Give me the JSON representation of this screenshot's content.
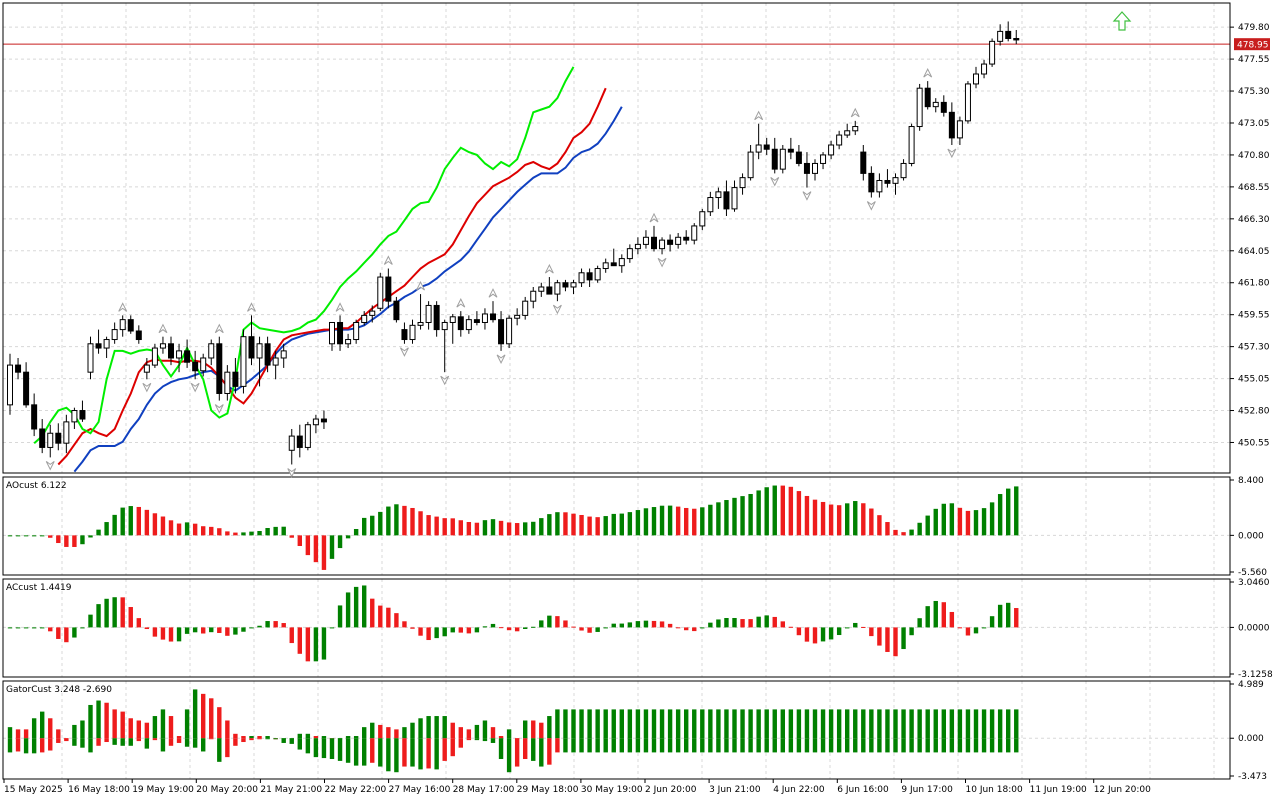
{
  "chart_data": {
    "type": "candlestick",
    "main": {
      "ylim": [
        448.4,
        481.5
      ],
      "ticks": [
        "479.80",
        "477.55",
        "475.30",
        "473.05",
        "470.80",
        "468.55",
        "466.30",
        "464.05",
        "461.80",
        "459.55",
        "457.30",
        "455.05",
        "452.80",
        "450.55"
      ],
      "current_price": "478.95",
      "price_line_value": 478.6,
      "alligator": {
        "lips_color": "#00ee00",
        "teeth_color": "#dd0000",
        "jaw_color": "#1040c0"
      }
    },
    "panels": [
      {
        "label": "AOcust 6.122",
        "ticks": [
          "8.400",
          "0.000",
          "-5.560"
        ],
        "ylim": [
          -5.56,
          8.4
        ],
        "up_color": "#008000",
        "down_color": "#ee1c1c"
      },
      {
        "label": "ACcust 1.4419",
        "ticks": [
          "3.0460",
          "0.0000",
          "-3.1258"
        ],
        "ylim": [
          -3.1258,
          3.046
        ],
        "up_color": "#008000",
        "down_color": "#ee1c1c"
      },
      {
        "label": "GatorCust 3.248 -2.690",
        "ticks": [
          "4.989",
          "0.000",
          "-3.473"
        ],
        "ylim": [
          -3.473,
          4.989
        ],
        "up_color": "#008000",
        "down_color": "#ee1c1c"
      }
    ],
    "x_labels": [
      "15 May 2025",
      "16 May 18:00",
      "19 May 19:00",
      "20 May 20:00",
      "21 May 21:00",
      "22 May 22:00",
      "27 May 16:00",
      "28 May 17:00",
      "29 May 18:00",
      "30 May 19:00",
      "2 Jun 20:00",
      "3 Jun 21:00",
      "4 Jun 22:00",
      "6 Jun 16:00",
      "9 Jun 17:00",
      "10 Jun 18:00",
      "11 Jun 19:00",
      "12 Jun 20:00"
    ],
    "candles": [
      [
        453.2,
        456.8,
        452.5,
        456.0
      ],
      [
        456.0,
        456.5,
        455.0,
        455.5
      ],
      [
        455.5,
        456.2,
        453.0,
        453.2
      ],
      [
        453.2,
        454.0,
        451.0,
        451.5
      ],
      [
        451.5,
        452.2,
        449.8,
        450.2
      ],
      [
        450.2,
        451.8,
        449.5,
        451.2
      ],
      [
        451.2,
        451.9,
        450.0,
        450.5
      ],
      [
        450.5,
        452.5,
        449.8,
        452.0
      ],
      [
        452.0,
        453.0,
        451.5,
        452.8
      ],
      [
        452.8,
        453.5,
        452.0,
        452.2
      ],
      [
        455.5,
        458.0,
        455.0,
        457.5
      ],
      [
        457.5,
        458.5,
        456.8,
        457.2
      ],
      [
        457.2,
        458.0,
        456.5,
        457.8
      ],
      [
        457.8,
        459.0,
        457.5,
        458.5
      ],
      [
        458.5,
        459.5,
        458.0,
        459.2
      ],
      [
        459.2,
        459.5,
        458.2,
        458.4
      ],
      [
        458.4,
        458.8,
        457.5,
        457.8
      ],
      [
        455.5,
        456.5,
        455.0,
        456.0
      ],
      [
        456.0,
        457.5,
        455.8,
        457.2
      ],
      [
        457.2,
        458.0,
        456.8,
        457.5
      ],
      [
        457.5,
        458.0,
        456.0,
        456.5
      ],
      [
        456.5,
        457.5,
        455.5,
        457.0
      ],
      [
        457.0,
        457.8,
        455.8,
        456.2
      ],
      [
        456.2,
        457.0,
        455.0,
        455.6
      ],
      [
        455.6,
        456.8,
        455.2,
        456.5
      ],
      [
        456.5,
        457.8,
        456.0,
        457.5
      ],
      [
        457.5,
        458.0,
        453.5,
        454.0
      ],
      [
        454.0,
        456.0,
        453.5,
        455.5
      ],
      [
        455.5,
        456.5,
        454.0,
        454.5
      ],
      [
        454.5,
        458.5,
        454.0,
        458.0
      ],
      [
        458.0,
        459.5,
        456.0,
        456.5
      ],
      [
        456.5,
        458.0,
        454.5,
        457.5
      ],
      [
        457.5,
        458.0,
        455.5,
        456.0
      ],
      [
        456.0,
        457.0,
        455.0,
        456.5
      ],
      [
        456.5,
        457.5,
        455.8,
        457.0
      ],
      [
        450.0,
        451.5,
        449.0,
        451.0
      ],
      [
        451.0,
        451.8,
        449.5,
        450.2
      ],
      [
        450.2,
        452.0,
        450.0,
        451.8
      ],
      [
        451.8,
        452.5,
        451.2,
        452.2
      ],
      [
        452.2,
        452.8,
        451.5,
        452.0
      ],
      [
        457.5,
        459.0,
        457.0,
        459.0
      ],
      [
        459.0,
        459.5,
        457.0,
        457.5
      ],
      [
        457.5,
        458.2,
        457.2,
        457.8
      ],
      [
        457.8,
        459.2,
        457.5,
        459.0
      ],
      [
        459.0,
        459.8,
        458.8,
        459.5
      ],
      [
        459.5,
        460.2,
        459.0,
        459.8
      ],
      [
        460.0,
        462.5,
        459.8,
        462.2
      ],
      [
        462.2,
        462.8,
        460.0,
        460.5
      ],
      [
        460.5,
        460.8,
        459.0,
        459.2
      ],
      [
        458.5,
        459.0,
        457.5,
        457.8
      ],
      [
        457.8,
        459.2,
        457.5,
        458.8
      ],
      [
        458.8,
        461.0,
        458.5,
        459.0
      ],
      [
        459.0,
        460.5,
        458.5,
        460.2
      ],
      [
        460.2,
        460.5,
        458.0,
        458.5
      ],
      [
        458.5,
        459.2,
        455.5,
        459.0
      ],
      [
        459.0,
        459.6,
        457.5,
        459.4
      ],
      [
        459.4,
        459.8,
        458.0,
        458.5
      ],
      [
        458.5,
        459.5,
        458.2,
        459.2
      ],
      [
        459.2,
        459.8,
        458.8,
        459.0
      ],
      [
        459.0,
        460.0,
        458.5,
        459.6
      ],
      [
        459.6,
        460.5,
        459.0,
        459.2
      ],
      [
        459.2,
        459.8,
        457.0,
        457.5
      ],
      [
        457.5,
        459.5,
        457.2,
        459.3
      ],
      [
        459.3,
        460.0,
        458.8,
        459.5
      ],
      [
        459.5,
        460.8,
        459.2,
        460.5
      ],
      [
        460.5,
        461.5,
        460.0,
        461.2
      ],
      [
        461.2,
        461.8,
        460.8,
        461.5
      ],
      [
        461.5,
        462.2,
        461.0,
        461.0
      ],
      [
        461.0,
        462.0,
        460.5,
        461.8
      ],
      [
        461.8,
        462.0,
        461.2,
        461.5
      ],
      [
        461.5,
        462.0,
        461.0,
        461.8
      ],
      [
        461.8,
        462.8,
        461.5,
        462.5
      ],
      [
        462.5,
        462.8,
        461.5,
        462.0
      ],
      [
        462.0,
        463.0,
        461.8,
        462.8
      ],
      [
        462.8,
        463.5,
        462.5,
        463.2
      ],
      [
        463.2,
        464.2,
        463.0,
        463.0
      ],
      [
        463.0,
        463.8,
        462.5,
        463.5
      ],
      [
        463.5,
        464.5,
        463.2,
        464.2
      ],
      [
        464.2,
        465.0,
        463.8,
        464.5
      ],
      [
        464.5,
        465.5,
        464.2,
        465.0
      ],
      [
        465.0,
        465.8,
        464.0,
        464.2
      ],
      [
        464.2,
        465.0,
        463.8,
        464.8
      ],
      [
        464.8,
        465.2,
        464.0,
        464.5
      ],
      [
        464.5,
        465.3,
        464.2,
        465.0
      ],
      [
        465.0,
        465.5,
        464.5,
        464.8
      ],
      [
        464.8,
        466.0,
        464.5,
        465.8
      ],
      [
        465.8,
        467.0,
        465.5,
        466.8
      ],
      [
        466.8,
        468.2,
        466.5,
        467.8
      ],
      [
        467.8,
        468.5,
        467.0,
        468.2
      ],
      [
        468.2,
        469.0,
        466.5,
        467.0
      ],
      [
        467.0,
        469.0,
        466.8,
        468.5
      ],
      [
        468.5,
        469.5,
        468.0,
        469.2
      ],
      [
        469.2,
        471.5,
        469.0,
        471.0
      ],
      [
        471.0,
        473.0,
        470.5,
        471.5
      ],
      [
        471.5,
        472.0,
        470.8,
        471.2
      ],
      [
        471.2,
        472.0,
        469.5,
        469.8
      ],
      [
        469.8,
        471.5,
        469.5,
        471.2
      ],
      [
        471.2,
        472.0,
        470.5,
        471.0
      ],
      [
        471.0,
        471.5,
        470.0,
        470.2
      ],
      [
        470.2,
        471.0,
        468.5,
        469.5
      ],
      [
        469.5,
        470.5,
        469.0,
        470.2
      ],
      [
        470.2,
        471.0,
        469.8,
        470.8
      ],
      [
        470.8,
        471.8,
        470.5,
        471.5
      ],
      [
        471.5,
        472.5,
        471.2,
        472.2
      ],
      [
        472.2,
        473.0,
        472.0,
        472.5
      ],
      [
        472.5,
        473.2,
        472.2,
        472.8
      ],
      [
        471.0,
        471.5,
        469.0,
        469.5
      ],
      [
        469.5,
        470.0,
        467.8,
        468.2
      ],
      [
        468.2,
        469.5,
        467.8,
        469.0
      ],
      [
        469.0,
        469.8,
        468.5,
        468.8
      ],
      [
        468.8,
        469.5,
        468.0,
        469.2
      ],
      [
        469.2,
        470.5,
        469.0,
        470.2
      ],
      [
        470.2,
        473.0,
        470.0,
        472.8
      ],
      [
        472.8,
        475.8,
        472.5,
        475.5
      ],
      [
        475.5,
        476.0,
        474.0,
        474.2
      ],
      [
        474.2,
        474.8,
        473.8,
        474.5
      ],
      [
        474.5,
        475.0,
        473.5,
        473.8
      ],
      [
        473.8,
        474.5,
        471.5,
        472.0
      ],
      [
        472.0,
        473.5,
        471.5,
        473.2
      ],
      [
        473.2,
        476.0,
        473.0,
        475.8
      ],
      [
        475.8,
        477.0,
        475.5,
        476.5
      ],
      [
        476.5,
        477.5,
        476.2,
        477.2
      ],
      [
        477.2,
        479.0,
        477.0,
        478.8
      ],
      [
        478.8,
        480.0,
        478.5,
        479.5
      ],
      [
        479.5,
        480.2,
        478.8,
        479.0
      ],
      [
        479.0,
        479.6,
        478.6,
        478.9
      ]
    ],
    "lips": [
      450.5,
      451.0,
      452.0,
      452.8,
      453.0,
      452.5,
      451.5,
      451.2,
      452.0,
      455.0,
      457.0,
      457.0,
      456.8,
      457.0,
      457.1,
      457.0,
      456.0,
      455.2,
      456.0,
      457.2,
      456.0,
      455.0,
      452.8,
      452.3,
      452.6,
      455.0,
      458.5,
      459.0,
      458.6,
      458.5,
      458.4,
      458.3,
      458.4,
      458.6,
      459.0,
      459.2,
      459.8,
      460.6,
      461.5,
      462.1,
      462.6,
      463.2,
      463.8,
      464.5,
      465.1,
      465.4,
      466.2,
      467.0,
      467.4,
      467.5,
      468.5,
      469.8,
      470.6,
      471.3,
      471.0,
      470.8,
      470.2,
      469.8,
      470.3,
      470.0,
      470.5,
      472.0,
      473.8,
      474.0,
      474.2,
      474.8,
      476.0,
      477.0
    ],
    "teeth": [
      449.0,
      449.6,
      450.4,
      451.2,
      451.5,
      451.2,
      451.0,
      451.5,
      452.8,
      454.0,
      455.5,
      456.2,
      456.4,
      456.3,
      456.3,
      456.2,
      456.3,
      456.3,
      456.2,
      455.8,
      455.2,
      454.5,
      453.7,
      453.3,
      454.0,
      455.0,
      456.0,
      457.0,
      457.8,
      458.1,
      458.2,
      458.3,
      458.4,
      458.5,
      458.5,
      458.6,
      458.6,
      459.0,
      459.5,
      460.0,
      460.4,
      460.8,
      461.2,
      461.6,
      462.2,
      462.8,
      463.2,
      463.5,
      463.8,
      464.5,
      465.5,
      466.5,
      467.4,
      468.0,
      468.6,
      468.9,
      469.2,
      469.6,
      470.1,
      470.3,
      470.0,
      469.8,
      470.2,
      471.0,
      472.0,
      472.4,
      473.0,
      474.2,
      475.5
    ],
    "jaw": [
      448.5,
      449.2,
      450.0,
      450.3,
      450.3,
      450.3,
      450.6,
      451.5,
      452.2,
      453.2,
      454.0,
      454.5,
      454.8,
      455.0,
      455.1,
      455.3,
      455.5,
      455.6,
      455.2,
      454.5,
      454.2,
      454.6,
      455.0,
      455.5,
      456.0,
      456.8,
      457.4,
      457.8,
      458.0,
      458.2,
      458.3,
      458.4,
      458.5,
      458.5,
      458.5,
      458.6,
      458.8,
      459.2,
      459.6,
      460.1,
      460.4,
      460.8,
      461.1,
      461.5,
      461.7,
      462.1,
      462.6,
      463.0,
      463.4,
      464.0,
      464.8,
      465.6,
      466.4,
      467.0,
      467.6,
      468.2,
      468.7,
      469.2,
      469.5,
      469.5,
      469.5,
      469.9,
      470.6,
      471.0,
      471.2,
      471.6,
      472.3,
      473.2,
      474.2
    ]
  }
}
